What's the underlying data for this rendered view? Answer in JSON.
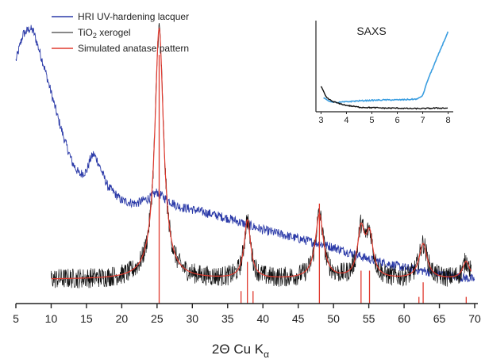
{
  "chart_data": [
    {
      "type": "line",
      "title": "",
      "xlabel": "2Θ Cu K",
      "xlabel_subscript": "α",
      "ylabel": "",
      "xlim": [
        5,
        70
      ],
      "ylim": [
        0,
        100
      ],
      "y_axis_shown": false,
      "x_ticks": [
        5,
        10,
        15,
        20,
        25,
        30,
        35,
        40,
        45,
        50,
        55,
        60,
        65,
        70
      ],
      "legend_position": "top-left",
      "grid": false,
      "series": [
        {
          "name": "HRI UV-hardening lacquer",
          "color": "#2b3aa8",
          "x": [
            5,
            6,
            7,
            7.5,
            8,
            9,
            10,
            11,
            12,
            13,
            14,
            15,
            15.5,
            16,
            16.5,
            17,
            18,
            20,
            22,
            24,
            25,
            26,
            28,
            30,
            35,
            40,
            45,
            50,
            55,
            60,
            65,
            70
          ],
          "y": [
            86,
            95,
            97,
            96,
            92,
            84,
            75,
            66,
            58,
            51,
            47,
            48,
            52,
            54,
            52,
            49,
            43,
            38,
            37,
            39,
            41,
            39,
            36,
            35,
            32,
            28,
            25,
            22,
            18,
            15,
            13,
            11
          ]
        },
        {
          "name": "TiO2 xerogel",
          "name_main": "TiO",
          "name_sub": "2",
          "name_rest": " xerogel",
          "color": "#111111",
          "x_start": 10,
          "x_end": 69.5
        },
        {
          "name": "Simulated anatase pattern",
          "color": "#e03a2f",
          "x_start": 10,
          "x_end": 69.5,
          "baseline": 11,
          "peaks": [
            {
              "x": 25.3,
              "height": 86,
              "width": 0.75
            },
            {
              "x": 37.8,
              "height": 20,
              "width": 0.55
            },
            {
              "x": 48.0,
              "height": 22,
              "width": 0.7
            },
            {
              "x": 53.9,
              "height": 16,
              "width": 0.6
            },
            {
              "x": 55.1,
              "height": 14,
              "width": 0.6
            },
            {
              "x": 62.7,
              "height": 12,
              "width": 0.7
            },
            {
              "x": 68.8,
              "height": 6,
              "width": 0.6
            }
          ],
          "stick_lines": [
            {
              "x": 25.3,
              "height": 88
            },
            {
              "x": 36.9,
              "height": 7
            },
            {
              "x": 37.8,
              "height": 17
            },
            {
              "x": 38.6,
              "height": 7
            },
            {
              "x": 48.0,
              "height": 37
            },
            {
              "x": 53.9,
              "height": 14
            },
            {
              "x": 55.1,
              "height": 14
            },
            {
              "x": 62.1,
              "height": 5
            },
            {
              "x": 62.7,
              "height": 10
            },
            {
              "x": 68.8,
              "height": 5
            }
          ]
        }
      ]
    },
    {
      "type": "line",
      "title": "SAXS",
      "xlim": [
        2.8,
        8.2
      ],
      "x_ticks": [
        3,
        4,
        5,
        6,
        7,
        8
      ],
      "y_axis_shown": false,
      "series": [
        {
          "color": "#3b9ee0",
          "x": [
            3.1,
            3.3,
            3.6,
            4.0,
            4.5,
            5.0,
            5.5,
            6.0,
            6.5,
            6.8,
            7.0,
            7.2,
            7.5,
            7.8,
            8.0
          ],
          "y": [
            15,
            12,
            10,
            11,
            12,
            12.5,
            13,
            13,
            13.5,
            14,
            18,
            35,
            55,
            75,
            88
          ]
        },
        {
          "color": "#111111",
          "x": [
            3.0,
            3.1,
            3.2,
            3.4,
            3.7,
            4.0,
            4.5,
            5.0,
            5.5,
            6.0,
            6.5,
            7.0,
            7.5,
            8.0
          ],
          "y": [
            28,
            22,
            16,
            12,
            9,
            7,
            5,
            4.5,
            4,
            4,
            3.5,
            3.5,
            4,
            4
          ]
        }
      ]
    }
  ]
}
